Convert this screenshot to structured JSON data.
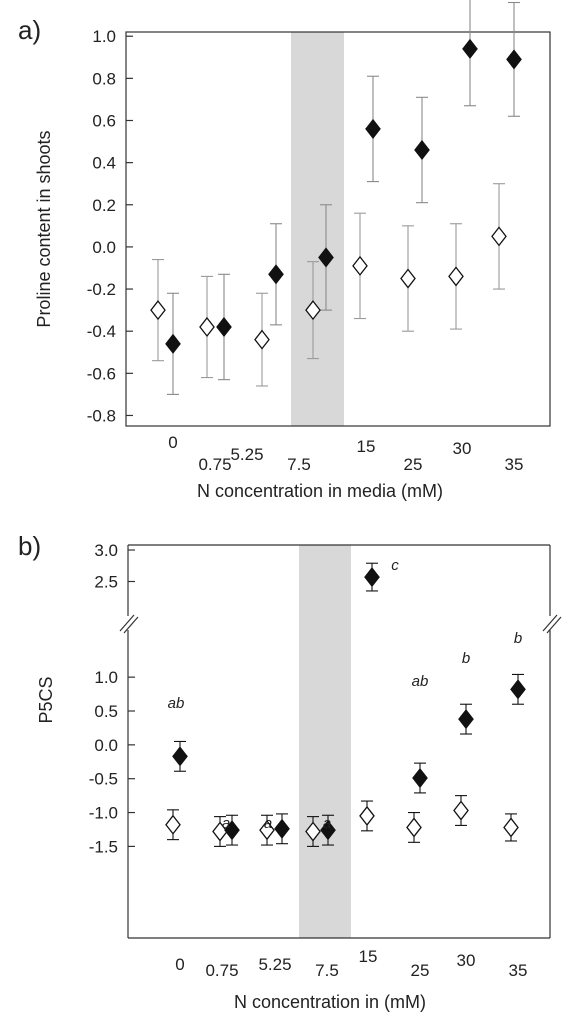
{
  "chart_data": [
    {
      "type": "scatter",
      "panel_label": "a)",
      "xlabel": "N concentration in media (mM)",
      "ylabel": "Proline content in shoots",
      "categories": [
        "0",
        "0.75",
        "5.25",
        "7.5",
        "15",
        "25",
        "30",
        "35"
      ],
      "ylim": [
        -0.85,
        1.02
      ],
      "yticks": [
        "-0.8",
        "-0.6",
        "-0.4",
        "-0.2",
        "0.0",
        "0.2",
        "0.4",
        "0.6",
        "0.8",
        "1.0"
      ],
      "highlight_category": "7.5",
      "grid": false,
      "series": [
        {
          "marker": "open-diamond",
          "values": [
            -0.3,
            -0.38,
            -0.44,
            -0.3,
            -0.09,
            -0.15,
            -0.14,
            0.05
          ],
          "errors": [
            0.24,
            0.24,
            0.22,
            0.23,
            0.25,
            0.25,
            0.25,
            0.25
          ]
        },
        {
          "marker": "filled-diamond",
          "values": [
            -0.46,
            -0.38,
            -0.13,
            -0.05,
            0.56,
            0.46,
            0.94,
            0.89
          ],
          "errors": [
            0.24,
            0.25,
            0.24,
            0.25,
            0.25,
            0.25,
            0.27,
            0.27
          ]
        }
      ]
    },
    {
      "type": "scatter",
      "panel_label": "b)",
      "xlabel": "N concentration in (mM)",
      "ylabel": "P5CS",
      "categories": [
        "0",
        "0.75",
        "5.25",
        "7.5",
        "15",
        "25",
        "30",
        "35"
      ],
      "axis_break": true,
      "yticks_lower": [
        "-1.5",
        "-1.0",
        "-0.5",
        "0.0",
        "0.5",
        "1.0"
      ],
      "yticks_upper": [
        "2.5",
        "3.0"
      ],
      "highlight_category": "7.5",
      "grid": false,
      "series": [
        {
          "marker": "open-diamond",
          "values": [
            -1.18,
            -1.28,
            -1.26,
            -1.28,
            -1.05,
            -1.22,
            -0.97,
            -1.22
          ],
          "errors": [
            0.22,
            0.22,
            0.22,
            0.22,
            0.22,
            0.22,
            0.22,
            0.2
          ]
        },
        {
          "marker": "filled-diamond",
          "values": [
            -0.17,
            -1.26,
            -1.24,
            -1.26,
            2.57,
            -0.49,
            0.38,
            0.82
          ],
          "errors": [
            0.22,
            0.22,
            0.22,
            0.22,
            0.22,
            0.22,
            0.22,
            0.22
          ]
        }
      ],
      "annotations": [
        {
          "category": "0",
          "text": "ab"
        },
        {
          "category": "0.75",
          "text": "a"
        },
        {
          "category": "5.25",
          "text": "a"
        },
        {
          "category": "7.5",
          "text": "a"
        },
        {
          "category": "15",
          "text": "c"
        },
        {
          "category": "25",
          "text": "ab"
        },
        {
          "category": "30",
          "text": "b"
        },
        {
          "category": "35",
          "text": "b"
        }
      ]
    }
  ]
}
